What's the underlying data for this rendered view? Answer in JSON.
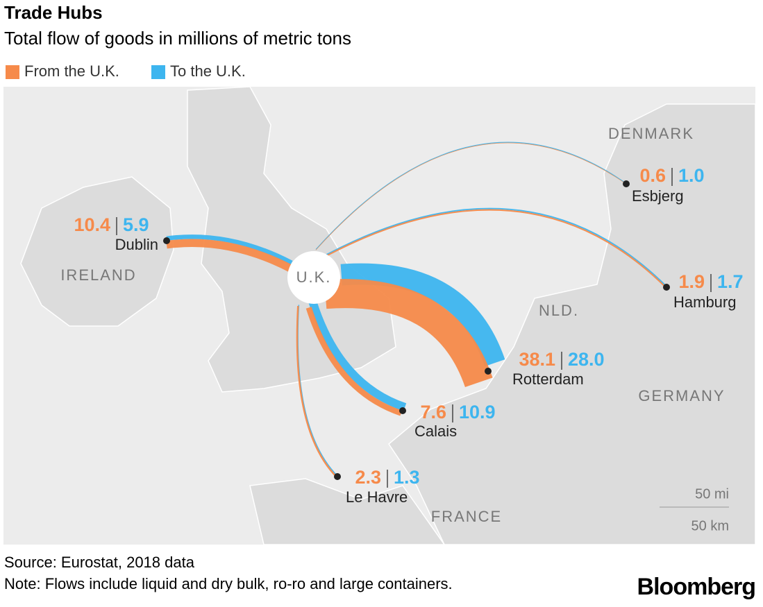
{
  "header": {
    "title": "Trade Hubs",
    "subtitle": "Total flow of goods in millions of metric tons"
  },
  "legend": [
    {
      "name": "From the U.K.",
      "color": "#f68a4a"
    },
    {
      "name": "To the U.K.",
      "color": "#3db5ef"
    }
  ],
  "origin": "U.K.",
  "hubs": [
    {
      "name": "Dublin",
      "values": [
        10.4,
        5.9
      ],
      "value_labels": [
        "10.4",
        "5.9"
      ]
    },
    {
      "name": "Esbjerg",
      "values": [
        0.6,
        1.0
      ],
      "value_labels": [
        "0.6",
        "1.0"
      ]
    },
    {
      "name": "Hamburg",
      "values": [
        1.9,
        1.7
      ],
      "value_labels": [
        "1.9",
        "1.7"
      ]
    },
    {
      "name": "Rotterdam",
      "values": [
        38.1,
        28.0
      ],
      "value_labels": [
        "38.1",
        "28.0"
      ]
    },
    {
      "name": "Calais",
      "values": [
        7.6,
        10.9
      ],
      "value_labels": [
        "7.6",
        "10.9"
      ]
    },
    {
      "name": "Le Havre",
      "values": [
        2.3,
        1.3
      ],
      "value_labels": [
        "2.3",
        "1.3"
      ]
    }
  ],
  "countries": [
    "IRELAND",
    "DENMARK",
    "NLD.",
    "GERMANY",
    "FRANCE"
  ],
  "scale": {
    "miles": "50 mi",
    "km": "50 km"
  },
  "footer": {
    "source": "Source: Eurostat, 2018 data",
    "note": "Note: Flows include liquid and dry bulk, ro-ro and large containers.",
    "logo": "Bloomberg"
  }
}
